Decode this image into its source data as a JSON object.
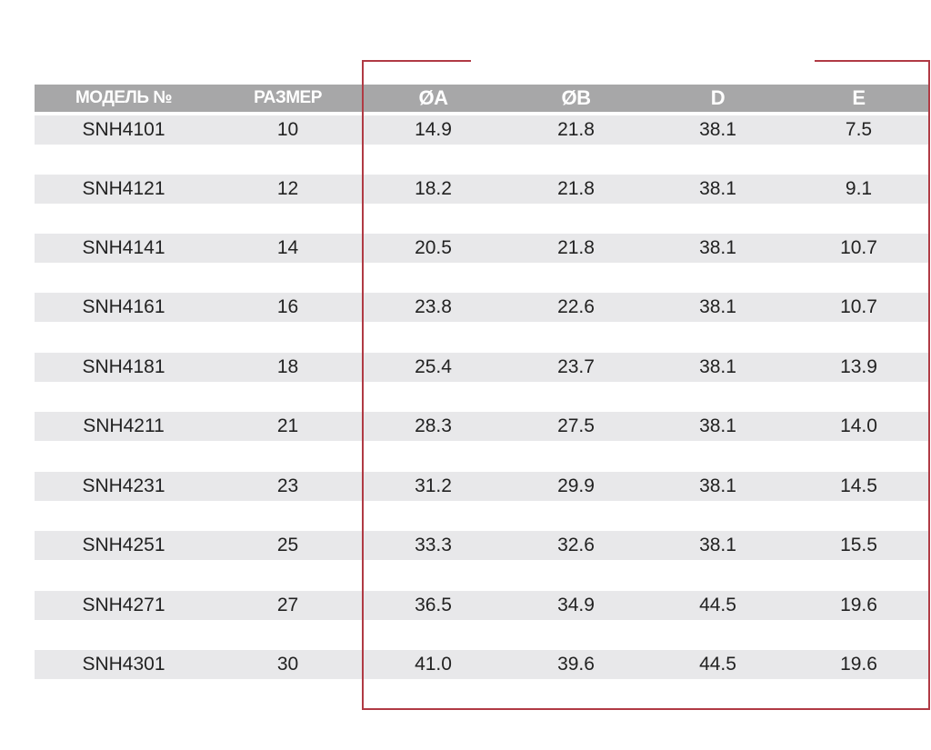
{
  "table": {
    "columns": [
      "МОДЕЛЬ №",
      "РАЗМЕР",
      "ØA",
      "ØB",
      "D",
      "E"
    ],
    "rows": [
      [
        "SNH4101",
        "10",
        "14.9",
        "21.8",
        "38.1",
        "7.5"
      ],
      [
        "SNH4121",
        "12",
        "18.2",
        "21.8",
        "38.1",
        "9.1"
      ],
      [
        "SNH4141",
        "14",
        "20.5",
        "21.8",
        "38.1",
        "10.7"
      ],
      [
        "SNH4161",
        "16",
        "23.8",
        "22.6",
        "38.1",
        "10.7"
      ],
      [
        "SNH4181",
        "18",
        "25.4",
        "23.7",
        "38.1",
        "13.9"
      ],
      [
        "SNH4211",
        "21",
        "28.3",
        "27.5",
        "38.1",
        "14.0"
      ],
      [
        "SNH4231",
        "23",
        "31.2",
        "29.9",
        "38.1",
        "14.5"
      ],
      [
        "SNH4251",
        "25",
        "33.3",
        "32.6",
        "38.1",
        "15.5"
      ],
      [
        "SNH4271",
        "27",
        "36.5",
        "34.9",
        "44.5",
        "19.6"
      ],
      [
        "SNH4301",
        "30",
        "41.0",
        "39.6",
        "44.5",
        "19.6"
      ]
    ]
  },
  "colors": {
    "header_bg": "#a7a7a8",
    "row_bg": "#e8e8ea",
    "frame": "#b03a44"
  }
}
